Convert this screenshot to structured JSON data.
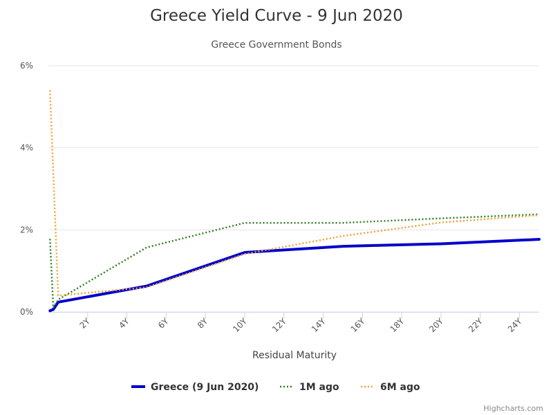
{
  "chart_data": {
    "type": "line",
    "title": "Greece Yield Curve - 9 Jun 2020",
    "subtitle": "Greece Government Bonds",
    "xlabel": "Residual Maturity",
    "ylabel": "",
    "xlim": [
      0,
      25
    ],
    "ylim": [
      0,
      6
    ],
    "x_ticks": [
      "2Y",
      "4Y",
      "6Y",
      "8Y",
      "10Y",
      "12Y",
      "14Y",
      "16Y",
      "18Y",
      "20Y",
      "22Y",
      "24Y"
    ],
    "y_ticks": [
      "0%",
      "2%",
      "4%",
      "6%"
    ],
    "grid": "horizontal",
    "legend_position": "bottom-center",
    "series": [
      {
        "name": "Greece (9 Jun 2020)",
        "color": "#0000cc",
        "style": "solid",
        "points": [
          [
            0.08,
            0.03
          ],
          [
            0.25,
            0.06
          ],
          [
            0.5,
            0.24
          ],
          [
            5,
            0.63
          ],
          [
            10,
            1.45
          ],
          [
            15,
            1.6
          ],
          [
            20,
            1.66
          ],
          [
            25,
            1.77
          ]
        ]
      },
      {
        "name": "1M ago",
        "color": "#2e7d1f",
        "style": "dotted",
        "points": [
          [
            0.08,
            1.78
          ],
          [
            0.25,
            0.1
          ],
          [
            0.5,
            0.3
          ],
          [
            5,
            1.57
          ],
          [
            10,
            2.17
          ],
          [
            15,
            2.17
          ],
          [
            20,
            2.28
          ],
          [
            25,
            2.38
          ]
        ]
      },
      {
        "name": "6M ago",
        "color": "#f0a030",
        "style": "dotted",
        "points": [
          [
            0.08,
            5.4
          ],
          [
            0.5,
            0.4
          ],
          [
            5,
            0.6
          ],
          [
            10,
            1.41
          ],
          [
            15,
            1.85
          ],
          [
            20,
            2.18
          ],
          [
            25,
            2.36
          ]
        ]
      }
    ]
  },
  "credits": "Highcharts.com"
}
